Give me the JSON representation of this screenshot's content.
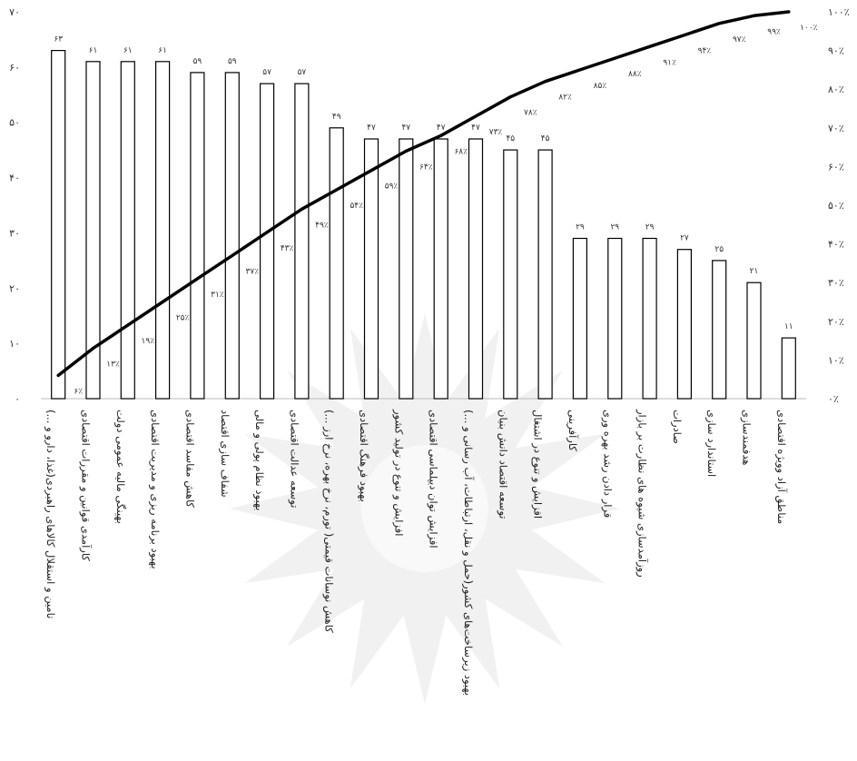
{
  "chart_data": {
    "type": "bar",
    "categories": [
      "تامین و استقلال کالاهای راهبردی(غذا، دارو و ...)",
      "کارآمدی قوانین و مقررات اقتصادی",
      "بهینگی مالیه عمومی دولت",
      "بهبود برنامه ریزی و مدیریت اقتصادی",
      "کاهش مفاسد اقتصادی",
      "شفاف سازی اقتصاد",
      "بهبود نظام پولی و مالی",
      "توسعه عدالت اقتصادی",
      "کاهش نوسانات قیمتی( تورم، نرخ بهره، نرخ ارز ...)",
      "بهبود فرهنگ اقتصادی",
      "افزایش و تنوع در تولید کشور",
      "افزایش توان دیپلماسی اقتصادی",
      "بهبود زیرساخت‌های کشور(حمل و نقل، ارتباطات، آب رسانی و ...)",
      "توسعه اقتصاد دانش بنیان",
      "افزایش و تنوع در اشتغال",
      "کارآفرینی",
      "قرار دادن رشد بهره وری",
      "روزآمدسازی شیوه های نظارت بر بازار",
      "صادرات",
      "استاندارد سازی",
      "هدفمندسازی",
      "مناطق آزاد وویژه اقتصادی"
    ],
    "series": [
      {
        "type": "bar",
        "values": [
          63,
          61,
          61,
          61,
          59,
          59,
          57,
          57,
          49,
          47,
          47,
          47,
          47,
          45,
          45,
          29,
          29,
          29,
          27,
          25,
          21,
          11
        ],
        "labels": [
          "۶۳",
          "۶۱",
          "۶۱",
          "۶۱",
          "۵۹",
          "۵۹",
          "۵۷",
          "۵۷",
          "۴۹",
          "۴۷",
          "۴۷",
          "۴۷",
          "۴۷",
          "۴۵",
          "۴۵",
          "۲۹",
          "۲۹",
          "۲۹",
          "۲۷",
          "۲۵",
          "۲۱",
          "۱۱"
        ]
      },
      {
        "type": "line",
        "axis": "right",
        "values": [
          6,
          13,
          19,
          25,
          31,
          37,
          43,
          49,
          54,
          59,
          64,
          68,
          73,
          78,
          82,
          85,
          88,
          91,
          94,
          97,
          99,
          100
        ],
        "labels": [
          "۶٪",
          "۱۳٪",
          "۱۹٪",
          "۲۵٪",
          "۳۱٪",
          "۳۷٪",
          "۴۳٪",
          "۴۹٪",
          "۵۴٪",
          "۵۹٪",
          "۶۴٪",
          "۶۸٪",
          "۷۳٪",
          "۷۸٪",
          "۸۲٪",
          "۸۵٪",
          "۸۸٪",
          "۹۱٪",
          "۹۴٪",
          "۹۷٪",
          "۹۹٪",
          "۱۰۰٪"
        ]
      }
    ],
    "ylim": [
      0,
      70
    ],
    "y2lim": [
      0,
      100
    ],
    "yticks": [
      "۰",
      "۱۰",
      "۲۰",
      "۳۰",
      "۴۰",
      "۵۰",
      "۶۰",
      "۷۰"
    ],
    "y2ticks": [
      "۰٪",
      "۱۰٪",
      "۲۰٪",
      "۳۰٪",
      "۴۰٪",
      "۵۰٪",
      "۶۰٪",
      "۷۰٪",
      "۸۰٪",
      "۹۰٪",
      "۱۰۰٪"
    ],
    "grid": false,
    "legend": "none",
    "colors": {
      "bar_stroke": "#000000",
      "bar_fill": "#ffffff",
      "line": "#000000",
      "watermark": "#e6e6e6"
    }
  }
}
